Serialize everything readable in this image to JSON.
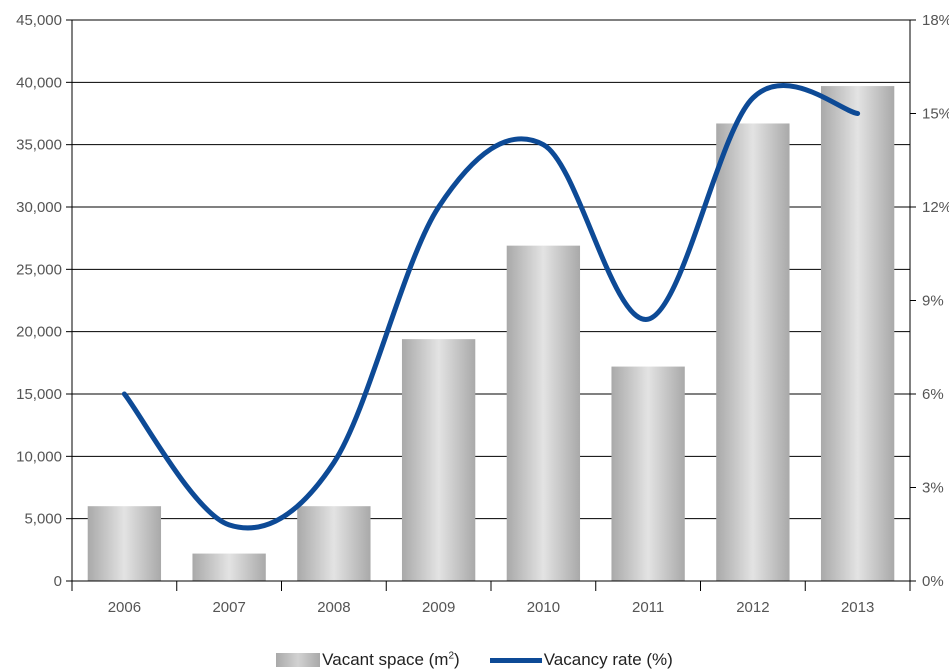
{
  "chart_data": {
    "type": "bar",
    "categories": [
      "2006",
      "2007",
      "2008",
      "2009",
      "2010",
      "2011",
      "2012",
      "2013"
    ],
    "series": [
      {
        "name": "Vacant space (m²)",
        "type": "bar",
        "axis": "left",
        "values": [
          6000,
          2200,
          6000,
          19400,
          26900,
          17200,
          36700,
          39700
        ]
      },
      {
        "name": "Vacancy rate (%)",
        "type": "line",
        "axis": "right",
        "values": [
          6.0,
          1.8,
          3.8,
          12.0,
          14.0,
          8.4,
          15.5,
          15.0
        ]
      }
    ],
    "y_left": {
      "min": 0,
      "max": 45000,
      "ticks": [
        "0",
        "5,000",
        "10,000",
        "15,000",
        "20,000",
        "25,000",
        "30,000",
        "35,000",
        "40,000",
        "45,000"
      ]
    },
    "y_right": {
      "min": 0,
      "max": 18,
      "ticks": [
        "0%",
        "3%",
        "6%",
        "9%",
        "12%",
        "15%",
        "18%"
      ]
    },
    "grid": true,
    "legend_position": "bottom-center",
    "colors": {
      "bar_edge": "#a9a9a9",
      "bar_mid": "#e3e3e3",
      "line": "#0d4a96",
      "grid": "#000000",
      "text": "#555555"
    }
  },
  "legend": {
    "bar_label_main": "Vacant space (m",
    "bar_label_sup": "2",
    "bar_label_close": ")",
    "line_label": "Vacancy rate (%)"
  }
}
